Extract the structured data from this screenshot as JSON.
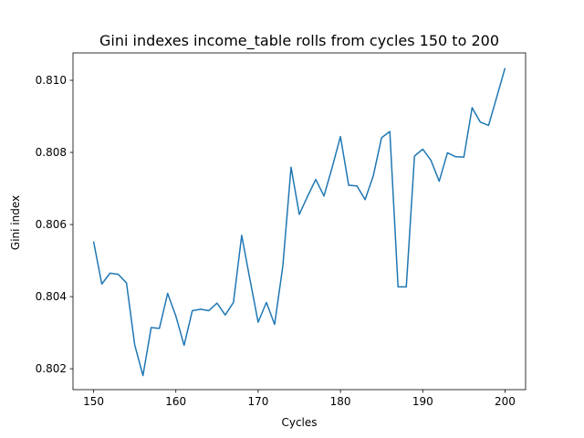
{
  "chart_data": {
    "type": "line",
    "title": "Gini indexes income_table rolls from cycles 150 to 200",
    "xlabel": "Cycles",
    "ylabel": "Gini index",
    "xlim": [
      147.5,
      202.5
    ],
    "ylim": [
      0.80142,
      0.81076
    ],
    "xticks": [
      150,
      160,
      170,
      180,
      190,
      200
    ],
    "xtick_labels": [
      "150",
      "160",
      "170",
      "180",
      "190",
      "200"
    ],
    "yticks": [
      0.802,
      0.804,
      0.806,
      0.808,
      0.81
    ],
    "ytick_labels": [
      "0.802",
      "0.804",
      "0.806",
      "0.808",
      "0.810"
    ],
    "grid": false,
    "line_color": "#1f77b4",
    "series": [
      {
        "x": [
          150,
          151,
          152,
          153,
          154,
          155,
          156,
          157,
          158,
          159,
          160,
          161,
          162,
          163,
          164,
          165,
          166,
          167,
          168,
          169,
          170,
          171,
          172,
          173,
          174,
          175,
          176,
          177,
          178,
          179,
          180,
          181,
          182,
          183,
          184,
          185,
          186,
          187,
          188,
          189,
          190,
          191,
          192,
          193,
          194,
          195,
          196,
          197,
          198,
          199,
          200
        ],
        "values": [
          0.80553,
          0.80435,
          0.80465,
          0.80462,
          0.80438,
          0.80266,
          0.80181,
          0.80314,
          0.80312,
          0.80409,
          0.80346,
          0.80265,
          0.80361,
          0.80365,
          0.80361,
          0.80382,
          0.80349,
          0.80384,
          0.8057,
          0.80448,
          0.80329,
          0.80384,
          0.80323,
          0.80485,
          0.80759,
          0.80628,
          0.80678,
          0.80725,
          0.80679,
          0.80759,
          0.80844,
          0.80709,
          0.80707,
          0.80669,
          0.80736,
          0.80841,
          0.80858,
          0.80427,
          0.80427,
          0.8079,
          0.80809,
          0.80778,
          0.8072,
          0.80799,
          0.80788,
          0.80787,
          0.80924,
          0.80884,
          0.80875,
          0.80954,
          0.81034
        ]
      }
    ]
  }
}
